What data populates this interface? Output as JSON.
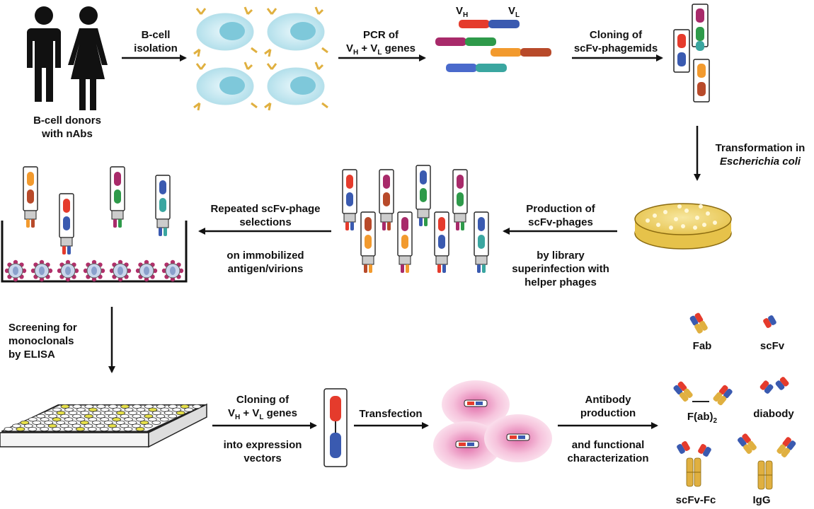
{
  "labels": {
    "donors": [
      "B-cell donors",
      "with nAbs"
    ],
    "bcell_isolation": [
      "B-cell",
      "isolation"
    ],
    "pcr": [
      "PCR of"
    ],
    "pcr_genes": {
      "v1": "V",
      "h": "H",
      "plus": " + V",
      "l": "L",
      "rest": " genes"
    },
    "vh": {
      "v": "V",
      "sub": "H"
    },
    "vl": {
      "v": "V",
      "sub": "L"
    },
    "cloning1": [
      "Cloning of",
      "scFv-phagemids"
    ],
    "transformation": [
      "Transformation in"
    ],
    "ecoli": "Escherichia coli",
    "production": [
      "Production of",
      "scFv-phages"
    ],
    "superinfection": [
      "by library",
      "superinfection with",
      "helper phages"
    ],
    "repeated": [
      "Repeated scFv-phage",
      "selections"
    ],
    "immobilized": [
      "on immobilized",
      "antigen/virions"
    ],
    "screening": [
      "Screening for",
      "monoclonals",
      "by ELISA"
    ],
    "cloning2": [
      "Cloning of"
    ],
    "cloning2_genes": {
      "v1": "V",
      "h": "H",
      "plus": " + V",
      "l": "L",
      "rest": " genes"
    },
    "expression": [
      "into expression",
      "vectors"
    ],
    "transfection": "Transfection",
    "antibody": [
      "Antibody",
      "production"
    ],
    "functional": [
      "and functional",
      "characterization"
    ],
    "formats": {
      "fab": "Fab",
      "scfv": "scFv",
      "fab2": "F(ab)",
      "fab2_sub": "2",
      "diabody": "diabody",
      "scfvfc": "scFv-Fc",
      "igg": "IgG"
    }
  },
  "colors": {
    "vh_red": "#e53b2c",
    "vl_blue": "#3a5ab0",
    "green": "#2e9a4a",
    "orange": "#f29a2e",
    "teal": "#3aa6a0",
    "purple": "#9a3a7a",
    "gold": "#e0b040",
    "cell": "#bfe6ef",
    "pink": "#f4b6cf"
  },
  "icons": [
    "person-icon",
    "b-cell-icon",
    "gene-segment-icon",
    "phagemid-icon",
    "petri-dish-icon",
    "phage-icon",
    "virion-icon",
    "elisa-plate-icon",
    "vector-icon",
    "cell-icon",
    "antibody-icon",
    "arrow-icon"
  ]
}
